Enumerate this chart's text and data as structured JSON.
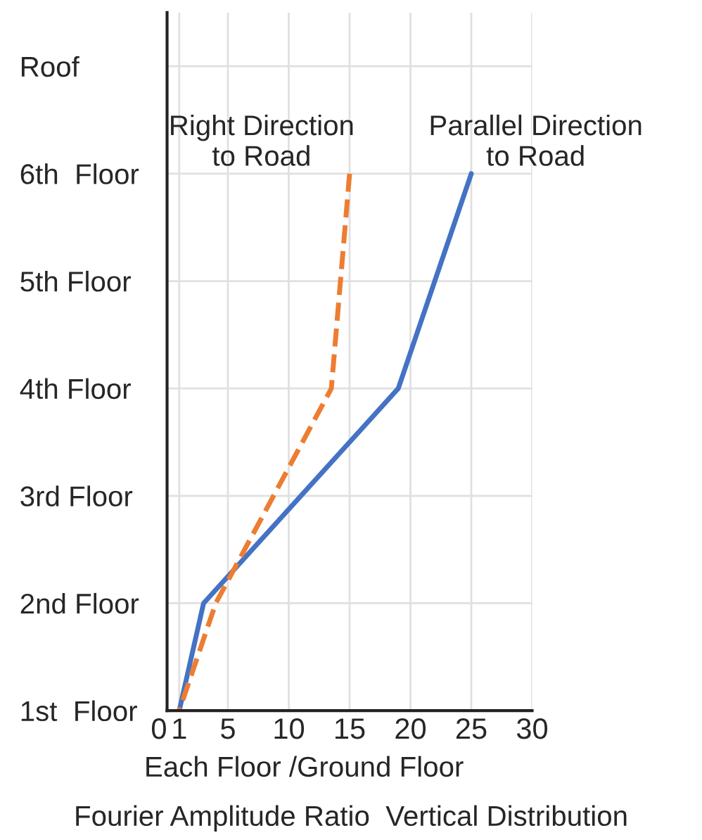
{
  "chart_data": {
    "type": "line",
    "orientation": "horizontal",
    "xlabel": "Each Floor /Ground Floor",
    "annotations": [
      "Fourier Amplitude Ratio  Vertical Distribution"
    ],
    "xlim": [
      0,
      30
    ],
    "xticks": [
      0,
      1,
      5,
      10,
      15,
      20,
      25,
      30
    ],
    "categories": [
      "Roof",
      "6th  Floor",
      "5th Floor",
      "4th Floor",
      "3rd Floor",
      "2nd Floor",
      "1st  Floor"
    ],
    "grid": true,
    "series": [
      {
        "name": "Parallel Direction to Road",
        "color": "#4472c4",
        "values": [
          null,
          25,
          null,
          19,
          null,
          3,
          1
        ],
        "line_style": "solid"
      },
      {
        "name": "Right Direction to Road",
        "color": "#ed7d31",
        "values": [
          null,
          15,
          null,
          13.5,
          null,
          4,
          1
        ],
        "line_style": "dashed"
      }
    ]
  }
}
